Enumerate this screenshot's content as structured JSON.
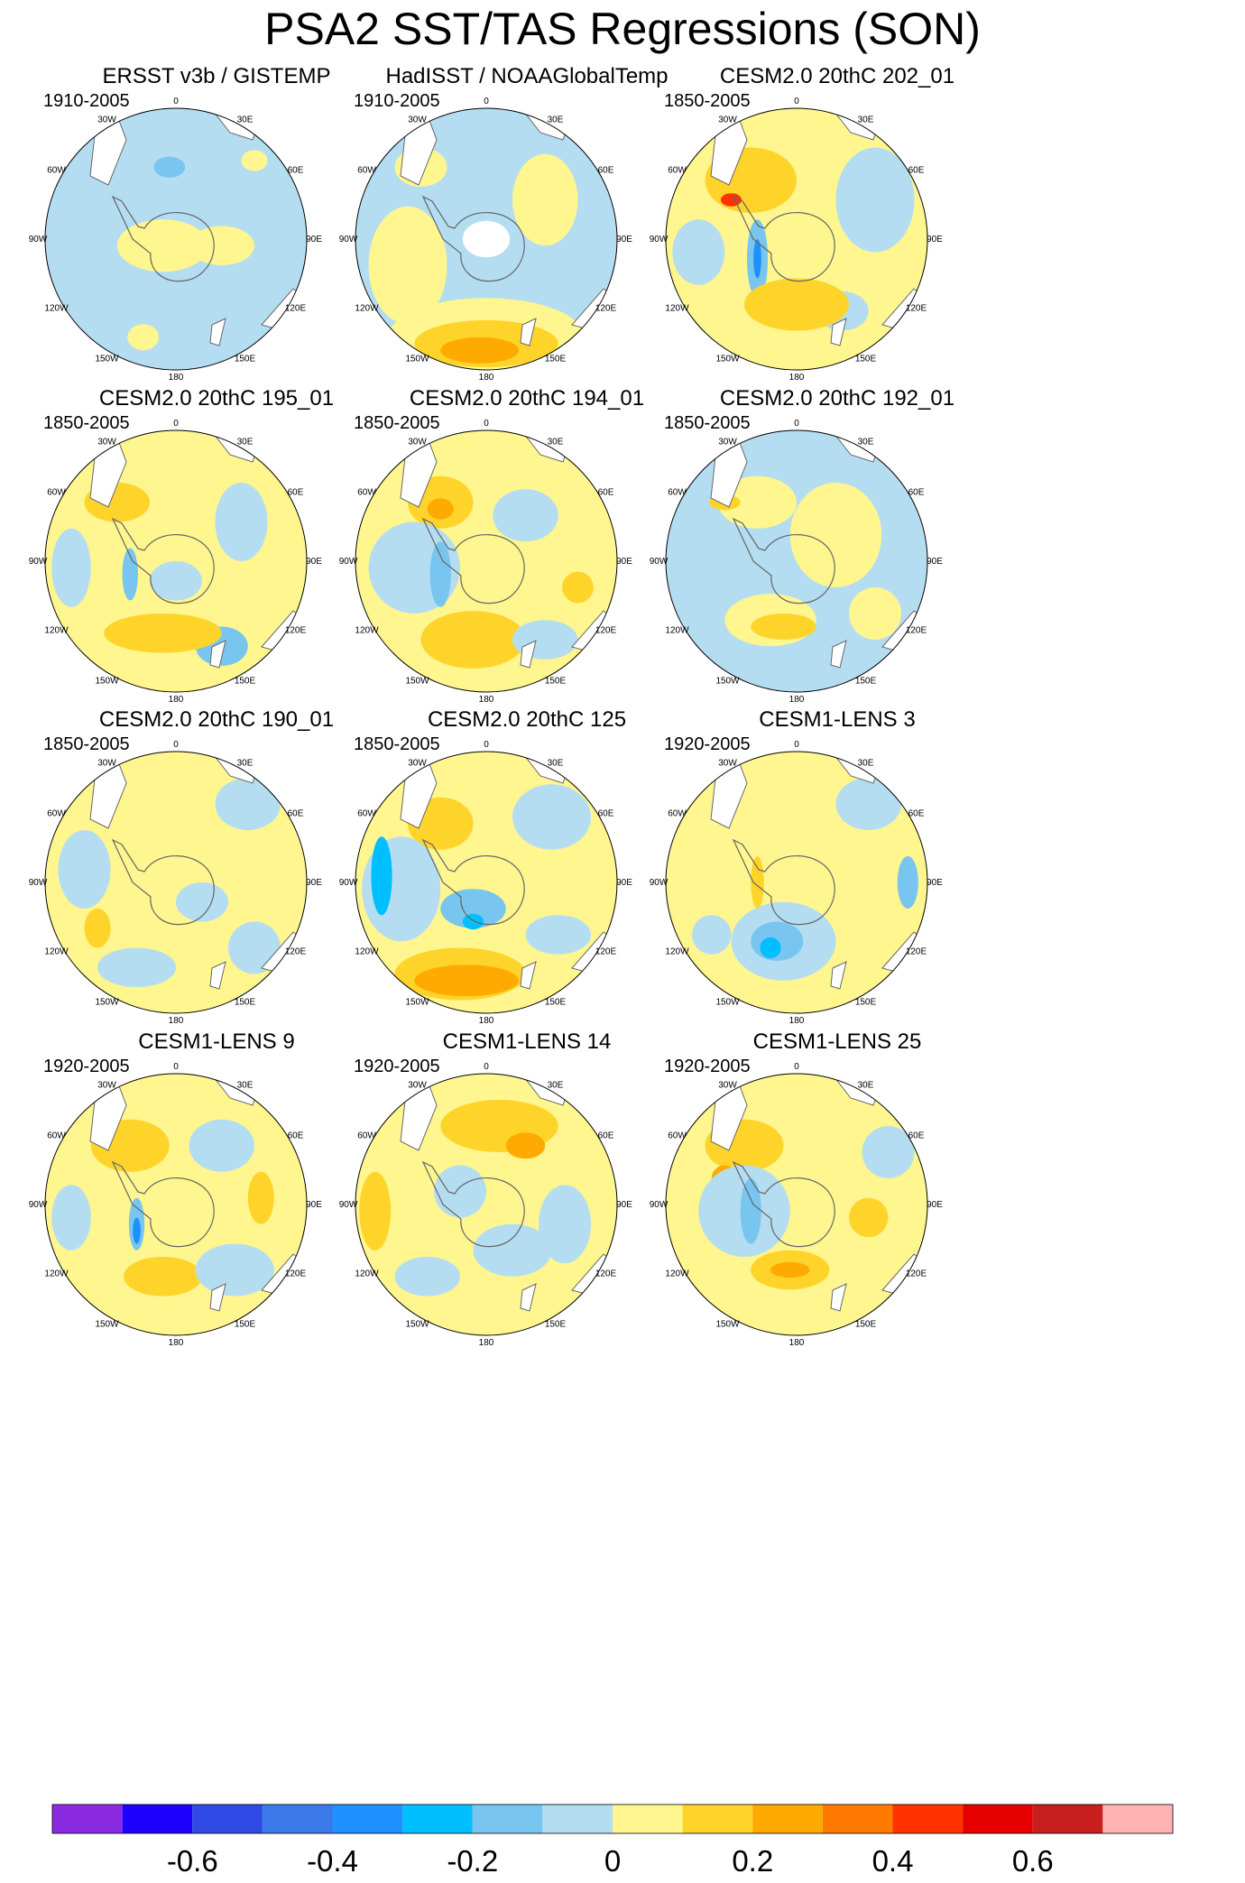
{
  "title": "PSA2 SST/TAS Regressions (SON)",
  "longitude_labels": [
    "0",
    "30E",
    "60E",
    "90E",
    "120E",
    "150E",
    "180",
    "150W",
    "120W",
    "90W",
    "60W",
    "30W"
  ],
  "panels": [
    {
      "title": "ERSST v3b / GISTEMP",
      "years": "1910-2005"
    },
    {
      "title": "HadISST / NOAAGlobalTemp",
      "years": "1910-2005"
    },
    {
      "title": "CESM2.0 20thC 202_01",
      "years": "1850-2005"
    },
    {
      "title": "CESM2.0 20thC 195_01",
      "years": "1850-2005"
    },
    {
      "title": "CESM2.0 20thC 194_01",
      "years": "1850-2005"
    },
    {
      "title": "CESM2.0 20thC 192_01",
      "years": "1850-2005"
    },
    {
      "title": "CESM2.0 20thC 190_01",
      "years": "1850-2005"
    },
    {
      "title": "CESM2.0 20thC 125",
      "years": "1850-2005"
    },
    {
      "title": "CESM1-LENS 3",
      "years": "1920-2005"
    },
    {
      "title": "CESM1-LENS 9",
      "years": "1920-2005"
    },
    {
      "title": "CESM1-LENS 14",
      "years": "1920-2005"
    },
    {
      "title": "CESM1-LENS 25",
      "years": "1920-2005"
    }
  ],
  "colorbar": {
    "colors": [
      "#8a2be2",
      "#1e00ff",
      "#2f4ae5",
      "#3b79e8",
      "#1e90ff",
      "#00bfff",
      "#78c6ef",
      "#b4ddf2",
      "#fff68f",
      "#ffd42a",
      "#ffaa00",
      "#ff7a00",
      "#ff3300",
      "#e60000",
      "#c81e1e",
      "#ffb4b4"
    ],
    "labels": [
      "-0.6",
      "-0.4",
      "-0.2",
      "0",
      "0.2",
      "0.4",
      "0.6"
    ]
  },
  "chart_data": {
    "type": "heatmap",
    "title": "PSA2 SST/TAS Regressions (SON)",
    "projection": "south polar stereographic",
    "season": "SON",
    "contour_levels": [
      -0.7,
      -0.6,
      -0.5,
      -0.4,
      -0.3,
      -0.2,
      -0.1,
      0,
      0.1,
      0.2,
      0.3,
      0.4,
      0.5,
      0.6,
      0.7
    ],
    "colorbar_tick_labels": [
      -0.6,
      -0.4,
      -0.2,
      0,
      0.2,
      0.4,
      0.6
    ],
    "panels": [
      {
        "name": "ERSST v3b / GISTEMP",
        "period": "1910-2005",
        "dominant": "weak negative (-0.1 to 0) with small positive patches near 0/60E"
      },
      {
        "name": "HadISST / NOAAGlobalTemp",
        "period": "1910-2005",
        "dominant": "positive 0.1-0.3 in Pacific sector (180-150W), weak negative elsewhere"
      },
      {
        "name": "CESM2.0 20thC 202_01",
        "period": "1850-2005",
        "dominant": "positive up to 0.5 in South Atlantic, negative -0.3 near Drake Passage"
      },
      {
        "name": "CESM2.0 20thC 195_01",
        "period": "1850-2005",
        "dominant": "positive 0.1-0.2 widespread, negative in South Pacific"
      },
      {
        "name": "CESM2.0 20thC 194_01",
        "period": "1850-2005",
        "dominant": "positive 0.2-0.3 in South Atlantic and Pacific, negative -0.3 near 90W"
      },
      {
        "name": "CESM2.0 20thC 192_01",
        "period": "1850-2005",
        "dominant": "weak mixed pattern, positive 0.1-0.2 in Pacific"
      },
      {
        "name": "CESM2.0 20thC 190_01",
        "period": "1850-2005",
        "dominant": "weak positive widespread, small positive patch at 120W"
      },
      {
        "name": "CESM2.0 20thC 125",
        "period": "1850-2005",
        "dominant": "strong positive 0.3 in Pacific (180-120W), negative -0.3 at 90W"
      },
      {
        "name": "CESM1-LENS 3",
        "period": "1920-2005",
        "dominant": "negative -0.2 in South Pacific, weak positive elsewhere"
      },
      {
        "name": "CESM1-LENS 9",
        "period": "1920-2005",
        "dominant": "positive 0.2 in South Atlantic, negative -0.3 near Drake Passage"
      },
      {
        "name": "CESM1-LENS 14",
        "period": "1920-2005",
        "dominant": "positive 0.2 in South Atlantic and near 90W, weak negative in Pacific"
      },
      {
        "name": "CESM1-LENS 25",
        "period": "1920-2005",
        "dominant": "positive 0.3 in South Atlantic, negative -0.3 near 90W"
      }
    ]
  }
}
